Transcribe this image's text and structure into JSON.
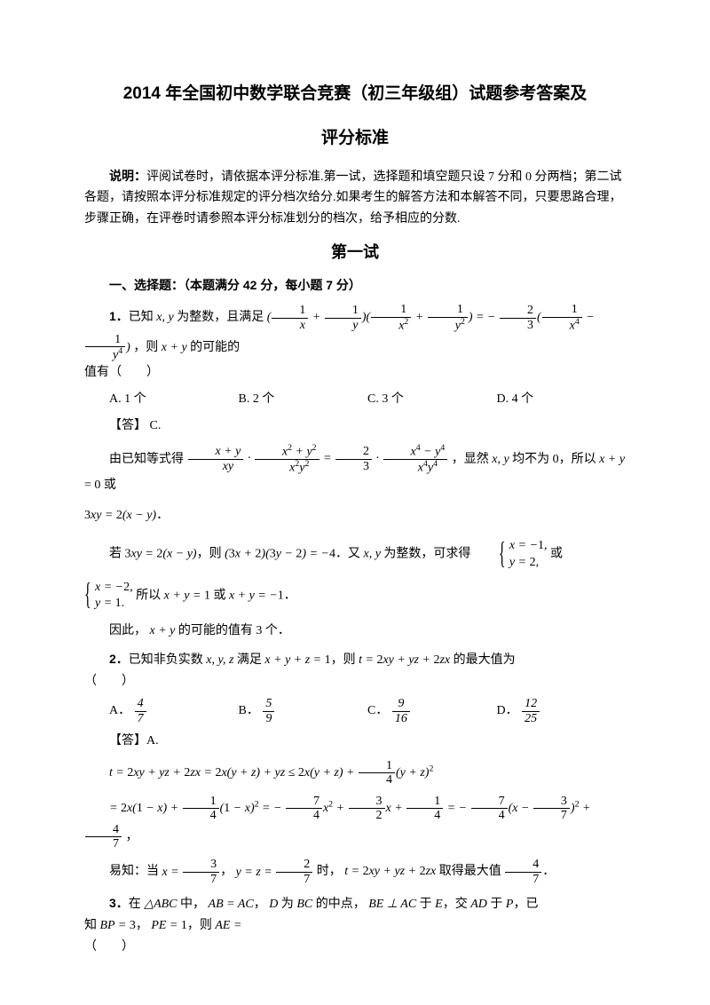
{
  "title": "2014 年全国初中数学联合竞赛（初三年级组）试题参考答案及",
  "subtitle": "评分标准",
  "instruction_label": "说明：",
  "instruction": "评阅试卷时，请依据本评分标准.第一试，选择题和填空题只设 7 分和 0 分两档；第二试各题，请按照本评分标准规定的评分档次给分.如果考生的解答方法和本解答不同，只要思路合理，步骤正确，在评卷时请参照本评分标准划分的档次，给予相应的分数.",
  "section1_title": "第一试",
  "part1_header": "一、选择题：（本题满分 42 分，每小题 7 分）",
  "q1": {
    "num": "1．",
    "text_a": "已知",
    "text_b": "为整数，且满足",
    "text_c": "，则",
    "text_d": "的可能的",
    "text_e": "值有（　　）",
    "opts": {
      "a": "A. 1 个",
      "b": "B. 2 个",
      "c": "C. 3 个",
      "d": "D. 4 个"
    },
    "answer": "【答】 C.",
    "sol1_a": "由已知等式得",
    "sol1_b": "，显然",
    "sol1_c": "均不为 0，所以",
    "sol1_d": "= 0 或",
    "sol2": "．",
    "sol3_a": "若",
    "sol3_b": "，则",
    "sol3_c": "．又",
    "sol3_d": "为整数，可求得",
    "sol3_e": "或",
    "sol4_a": "所以",
    "sol4_b": "或",
    "sol4_c": "．",
    "sol5_a": "因此，",
    "sol5_b": "的可能的值有 3 个．"
  },
  "q2": {
    "num": "2．",
    "text_a": "已知非负实数",
    "text_b": "满足",
    "text_c": "，则",
    "text_d": "的最大值为",
    "paren": "（　　）",
    "opts": {
      "a": "A．",
      "b": "B．",
      "c": "C．",
      "d": "D．"
    },
    "fracs": {
      "a_n": "4",
      "a_d": "7",
      "b_n": "5",
      "b_d": "9",
      "c_n": "9",
      "c_d": "16",
      "d_n": "12",
      "d_d": "25"
    },
    "answer": "【答】A.",
    "sol_last_a": "易知：当",
    "sol_last_b": "，",
    "sol_last_c": "时，",
    "sol_last_d": "取得最大值",
    "sol_last_e": "．"
  },
  "q3": {
    "num": "3．",
    "text_a": "在",
    "text_b": "中，",
    "text_c": "，",
    "text_d": "为",
    "text_e": "的中点，",
    "text_f": "于",
    "text_g": "，交",
    "text_h": "于",
    "text_i": "，已",
    "text_j": "知",
    "text_k": "，",
    "text_l": "，则",
    "paren": "（　　）"
  }
}
